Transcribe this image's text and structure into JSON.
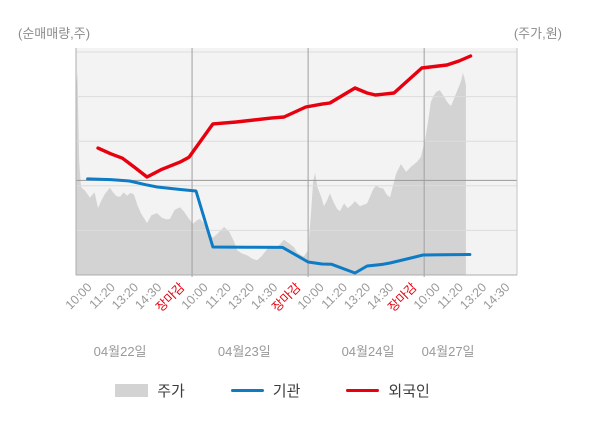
{
  "chart_data": {
    "type": "mixed",
    "title": "",
    "left_axis": {
      "label": "(순매매량,주)",
      "range": [
        -98000,
        133000
      ],
      "ticks": [
        133000,
        86800,
        40600,
        -5600,
        -51800,
        -98000
      ]
    },
    "right_axis": {
      "label": "(주가,원)",
      "range": [
        373000,
        458000
      ],
      "ticks": [
        458000,
        441000,
        424000,
        407000,
        390000,
        373000
      ]
    },
    "x_axis": {
      "total_slots": 19,
      "days": [
        {
          "date": "04월22일",
          "times": [
            "10:00",
            "11:20",
            "13:20",
            "14:30"
          ],
          "close_label": "장마감"
        },
        {
          "date": "04월23일",
          "times": [
            "10:00",
            "11:20",
            "13:20",
            "14:30"
          ],
          "close_label": "장마감"
        },
        {
          "date": "04월24일",
          "times": [
            "10:00",
            "11:20",
            "13:20",
            "14:30"
          ],
          "close_label": "장마감"
        },
        {
          "date": "04월27일",
          "times": [
            "10:00",
            "11:20",
            "13:20",
            "14:30"
          ],
          "close_label": null
        }
      ]
    },
    "series": [
      {
        "name": "주가",
        "type": "area",
        "axis": "right",
        "color": "#d3d3d3",
        "points": [
          [
            0.0,
            444000
          ],
          [
            0.06,
            450500
          ],
          [
            0.14,
            416000
          ],
          [
            0.22,
            406500
          ],
          [
            0.4,
            405000
          ],
          [
            0.6,
            402500
          ],
          [
            0.8,
            404500
          ],
          [
            0.95,
            398500
          ],
          [
            1.1,
            401500
          ],
          [
            1.25,
            404000
          ],
          [
            1.46,
            406300
          ],
          [
            1.6,
            404500
          ],
          [
            1.75,
            403000
          ],
          [
            1.9,
            402800
          ],
          [
            2.05,
            404500
          ],
          [
            2.2,
            403200
          ],
          [
            2.35,
            404300
          ],
          [
            2.5,
            403700
          ],
          [
            2.65,
            399500
          ],
          [
            2.8,
            396500
          ],
          [
            3.06,
            392800
          ],
          [
            3.25,
            395800
          ],
          [
            3.49,
            396600
          ],
          [
            3.7,
            394800
          ],
          [
            3.9,
            394200
          ],
          [
            4.05,
            394400
          ],
          [
            4.25,
            397800
          ],
          [
            4.48,
            398800
          ],
          [
            4.65,
            397200
          ],
          [
            4.87,
            394400
          ],
          [
            5.05,
            392500
          ],
          [
            5.2,
            393800
          ],
          [
            5.34,
            394400
          ],
          [
            5.51,
            392800
          ],
          [
            5.7,
            389500
          ],
          [
            5.9,
            387200
          ],
          [
            6.1,
            388800
          ],
          [
            6.38,
            391300
          ],
          [
            6.6,
            389500
          ],
          [
            6.8,
            386000
          ],
          [
            6.94,
            382400
          ],
          [
            7.15,
            381200
          ],
          [
            7.37,
            380500
          ],
          [
            7.6,
            379200
          ],
          [
            7.8,
            378600
          ],
          [
            8.0,
            380200
          ],
          [
            8.2,
            382500
          ],
          [
            8.36,
            384200
          ],
          [
            8.55,
            383200
          ],
          [
            8.75,
            384400
          ],
          [
            8.96,
            386400
          ],
          [
            9.22,
            384800
          ],
          [
            9.4,
            383500
          ],
          [
            9.52,
            381600
          ],
          [
            9.7,
            380600
          ],
          [
            9.82,
            380100
          ],
          [
            10.0,
            382500
          ],
          [
            10.12,
            396000
          ],
          [
            10.22,
            409000
          ],
          [
            10.3,
            411900
          ],
          [
            10.4,
            406500
          ],
          [
            10.56,
            402900
          ],
          [
            10.68,
            399200
          ],
          [
            10.82,
            401500
          ],
          [
            10.94,
            404100
          ],
          [
            11.1,
            400800
          ],
          [
            11.25,
            398200
          ],
          [
            11.37,
            397300
          ],
          [
            11.55,
            400300
          ],
          [
            11.7,
            398500
          ],
          [
            11.85,
            399500
          ],
          [
            12.02,
            401100
          ],
          [
            12.24,
            399200
          ],
          [
            12.54,
            400300
          ],
          [
            12.8,
            405600
          ],
          [
            12.92,
            407100
          ],
          [
            13.1,
            406200
          ],
          [
            13.23,
            406000
          ],
          [
            13.4,
            403500
          ],
          [
            13.53,
            402600
          ],
          [
            13.79,
            411600
          ],
          [
            14.0,
            415300
          ],
          [
            14.22,
            412300
          ],
          [
            14.43,
            414200
          ],
          [
            14.69,
            416100
          ],
          [
            14.86,
            418000
          ],
          [
            15.04,
            424700
          ],
          [
            15.16,
            431000
          ],
          [
            15.29,
            439000
          ],
          [
            15.42,
            441500
          ],
          [
            15.55,
            443000
          ],
          [
            15.68,
            443400
          ],
          [
            15.85,
            441000
          ],
          [
            16.03,
            438500
          ],
          [
            16.16,
            437400
          ],
          [
            16.33,
            441200
          ],
          [
            16.46,
            444000
          ],
          [
            16.59,
            447000
          ],
          [
            16.67,
            450100
          ],
          [
            16.74,
            448000
          ],
          [
            16.8,
            445400
          ]
        ]
      },
      {
        "name": "기관",
        "type": "line",
        "axis": "left",
        "color": "#0e7cc4",
        "points": [
          [
            0.5,
            1500
          ],
          [
            1.5,
            800
          ],
          [
            2.3,
            -600
          ],
          [
            3.0,
            -4500
          ],
          [
            3.5,
            -6800
          ],
          [
            4.5,
            -9400
          ],
          [
            5.17,
            -11000
          ],
          [
            5.9,
            -69000
          ],
          [
            7.4,
            -69200
          ],
          [
            8.9,
            -69400
          ],
          [
            10.0,
            -84500
          ],
          [
            10.6,
            -86600
          ],
          [
            11.0,
            -86800
          ],
          [
            12.02,
            -95900
          ],
          [
            12.54,
            -88700
          ],
          [
            13.2,
            -87000
          ],
          [
            13.53,
            -85600
          ],
          [
            14.43,
            -80400
          ],
          [
            14.95,
            -77300
          ],
          [
            15.8,
            -77000
          ],
          [
            16.97,
            -76800
          ]
        ]
      },
      {
        "name": "외국인",
        "type": "line",
        "axis": "left",
        "color": "#e8000f",
        "points": [
          [
            0.95,
            33500
          ],
          [
            1.5,
            27500
          ],
          [
            2.0,
            23000
          ],
          [
            2.5,
            14000
          ],
          [
            3.06,
            3500
          ],
          [
            3.7,
            11500
          ],
          [
            4.48,
            19000
          ],
          [
            4.87,
            24000
          ],
          [
            5.9,
            58500
          ],
          [
            6.9,
            60500
          ],
          [
            8.4,
            64500
          ],
          [
            8.96,
            65700
          ],
          [
            9.9,
            76000
          ],
          [
            10.6,
            79000
          ],
          [
            10.94,
            80200
          ],
          [
            12.02,
            95700
          ],
          [
            12.54,
            90500
          ],
          [
            12.9,
            88500
          ],
          [
            13.7,
            90500
          ],
          [
            14.9,
            116400
          ],
          [
            15.98,
            119500
          ],
          [
            16.5,
            123700
          ],
          [
            17.0,
            128900
          ]
        ]
      }
    ],
    "colors": {
      "close_label": "#e8000f",
      "grid": "#dcdcdc",
      "zero_line": "#999999",
      "day_divider": "#a0a0a0",
      "axis_line": "#adadad",
      "axis_text": "#999999",
      "plot_bg": "#f3f3f3",
      "legend_text": "#3c3c3c"
    }
  }
}
